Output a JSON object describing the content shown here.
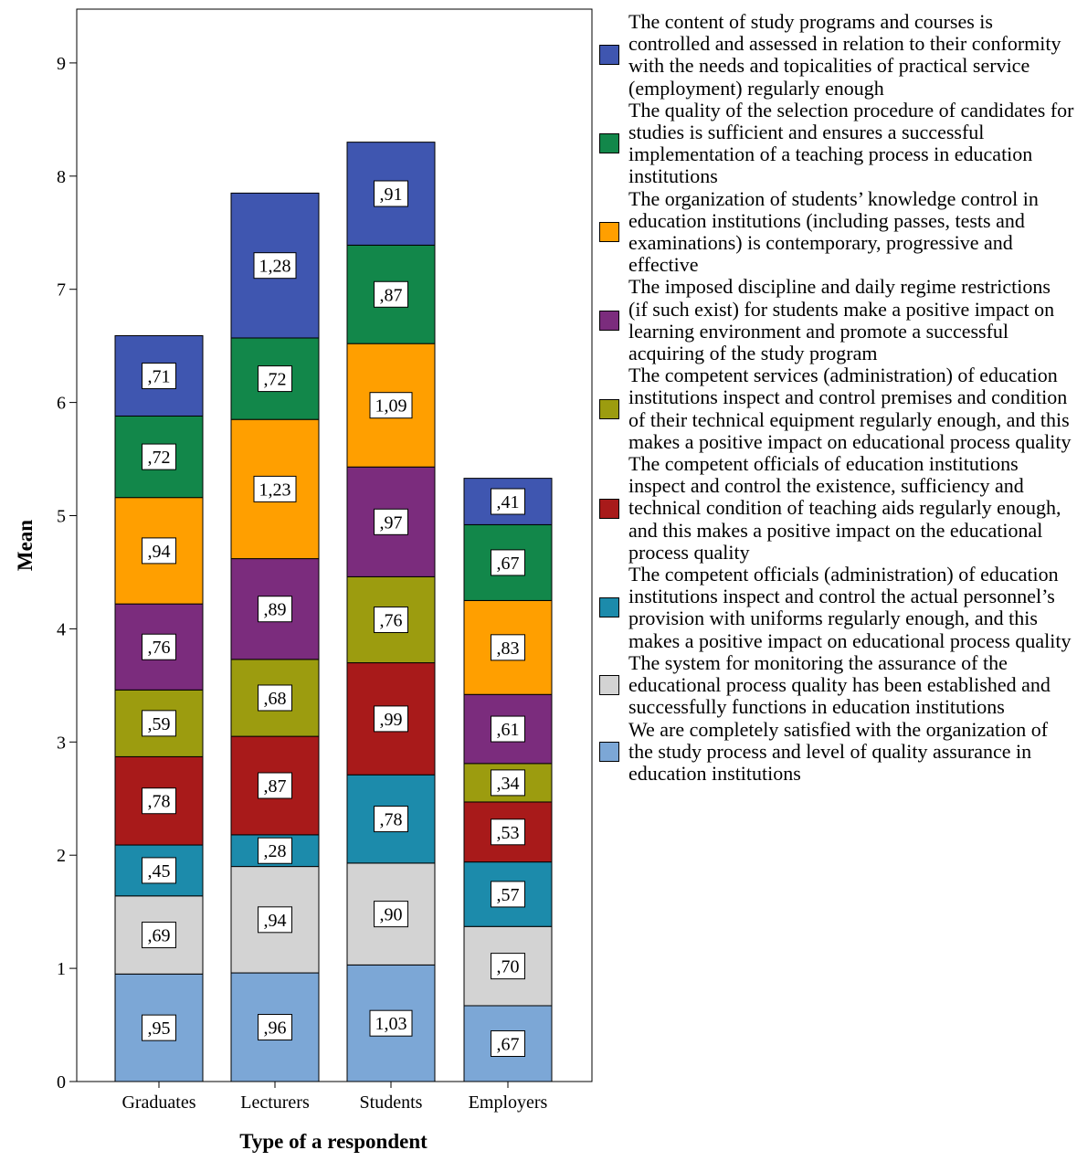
{
  "chart_data": {
    "type": "stacked-bar",
    "xlabel": "Type of a respondent",
    "ylabel": "Mean",
    "ylim": [
      0,
      9.5
    ],
    "yticks": [
      "0",
      "1",
      "2",
      "3",
      "4",
      "5",
      "6",
      "7",
      "8",
      "9"
    ],
    "categories": [
      "Graduates",
      "Lecturers",
      "Students",
      "Employers"
    ],
    "legend_position": "right",
    "grid": false,
    "series": [
      {
        "name": "We are completely satisfied with the organization of the study process and level of quality assurance in education institutions",
        "color": "#7ca7d6",
        "values": [
          0.95,
          0.96,
          1.03,
          0.67
        ],
        "labels": [
          ",95",
          ",96",
          "1,03",
          ",67"
        ]
      },
      {
        "name": "The system for monitoring the assurance of the educational process quality has been established and successfully functions in education institutions",
        "color": "#d3d3d3",
        "values": [
          0.69,
          0.94,
          0.9,
          0.7
        ],
        "labels": [
          ",69",
          ",94",
          ",90",
          ",70"
        ]
      },
      {
        "name": "The competent officials (administration) of education institutions inspect and control the actual personnel’s provision with uniforms regularly enough, and this makes a positive impact on educational process quality",
        "color": "#1c8bab",
        "values": [
          0.45,
          0.28,
          0.78,
          0.57
        ],
        "labels": [
          ",45",
          ",28",
          ",78",
          ",57"
        ]
      },
      {
        "name": "The competent officials of education institutions inspect and control the existence, sufficiency and technical condition of teaching aids regularly enough, and this makes a positive impact on the educational process quality",
        "color": "#a81a1a",
        "values": [
          0.78,
          0.87,
          0.99,
          0.53
        ],
        "labels": [
          ",78",
          ",87",
          ",99",
          ",53"
        ]
      },
      {
        "name": "The competent services (administration) of education institutions inspect and control premises and condition of their technical equipment regularly enough, and this makes a positive impact on educational process quality",
        "color": "#9c9c0f",
        "values": [
          0.59,
          0.68,
          0.76,
          0.34
        ],
        "labels": [
          ",59",
          ",68",
          ",76",
          ",34"
        ]
      },
      {
        "name": "The imposed discipline and daily regime restrictions (if such exist) for students make a positive impact on learning environment and promote a successful acquiring of the study program",
        "color": "#7b2c7d",
        "values": [
          0.76,
          0.89,
          0.97,
          0.61
        ],
        "labels": [
          ",76",
          ",89",
          ",97",
          ",61"
        ]
      },
      {
        "name": "The organization of students’ knowledge control in education institutions (including passes, tests and examinations) is contemporary, progressive and effective",
        "color": "#ff9f00",
        "values": [
          0.94,
          1.23,
          1.09,
          0.83
        ],
        "labels": [
          ",94",
          "1,23",
          "1,09",
          ",83"
        ]
      },
      {
        "name": "The quality of the selection procedure of candidates for studies is sufficient and ensures a successful implementation of a teaching process in education institutions",
        "color": "#12874a",
        "values": [
          0.72,
          0.72,
          0.87,
          0.67
        ],
        "labels": [
          ",72",
          ",72",
          ",87",
          ",67"
        ]
      },
      {
        "name": "The content of study programs and courses is controlled and assessed in relation to their conformity with the needs and topicalities of practical service (employment) regularly enough",
        "color": "#3f56b0",
        "values": [
          0.71,
          1.28,
          0.91,
          0.41
        ],
        "labels": [
          ",71",
          "1,28",
          ",91",
          ",41"
        ]
      }
    ]
  }
}
